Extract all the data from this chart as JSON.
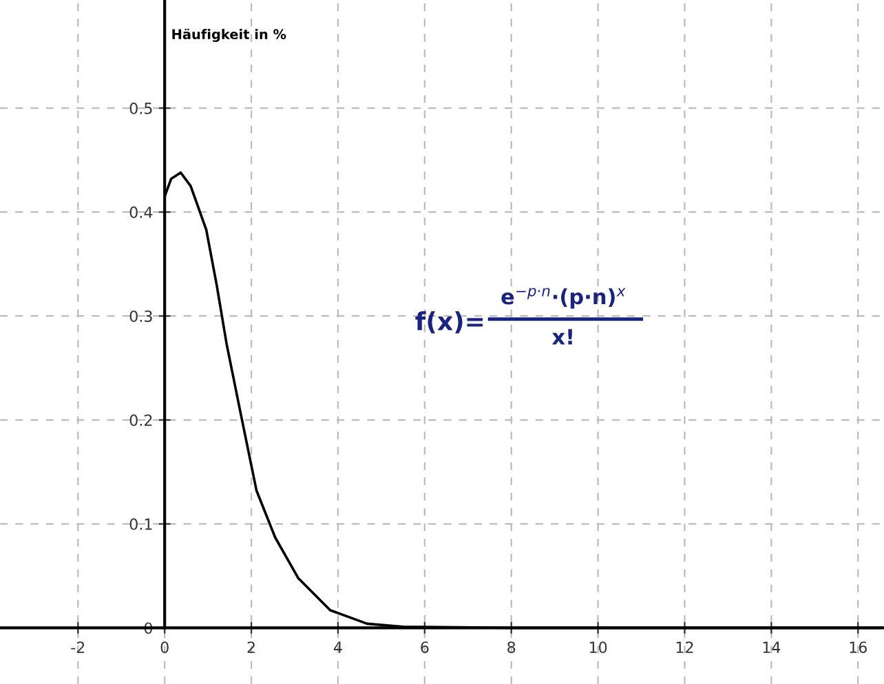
{
  "chart_data": {
    "type": "line",
    "ylabel": "Häufigkeit in %",
    "x": [
      0,
      0.15,
      0.37,
      0.6,
      0.96,
      1.2,
      1.43,
      1.75,
      2.12,
      2.55,
      3.08,
      3.82,
      4.67,
      5.5,
      8,
      12,
      16.5
    ],
    "series": [
      {
        "color": "#000000",
        "values": [
          0.415,
          0.432,
          0.438,
          0.425,
          0.383,
          0.33,
          0.273,
          0.207,
          0.132,
          0.087,
          0.048,
          0.017,
          0.004,
          0.001,
          0,
          0,
          0
        ]
      }
    ],
    "xlim": [
      -3.8,
      16.6
    ],
    "ylim": [
      -0.054,
      0.604
    ],
    "xticks": [
      -2,
      0,
      2,
      4,
      6,
      8,
      10,
      12,
      14,
      16
    ],
    "yticks": [
      0,
      0.1,
      0.2,
      0.3,
      0.4,
      0.5
    ],
    "grid": true,
    "marker": "none",
    "line_style": "solid",
    "annotations": [
      "f(x)=",
      "e$^{−p·n}$·(p·n)$^{x}$",
      "x!"
    ]
  }
}
